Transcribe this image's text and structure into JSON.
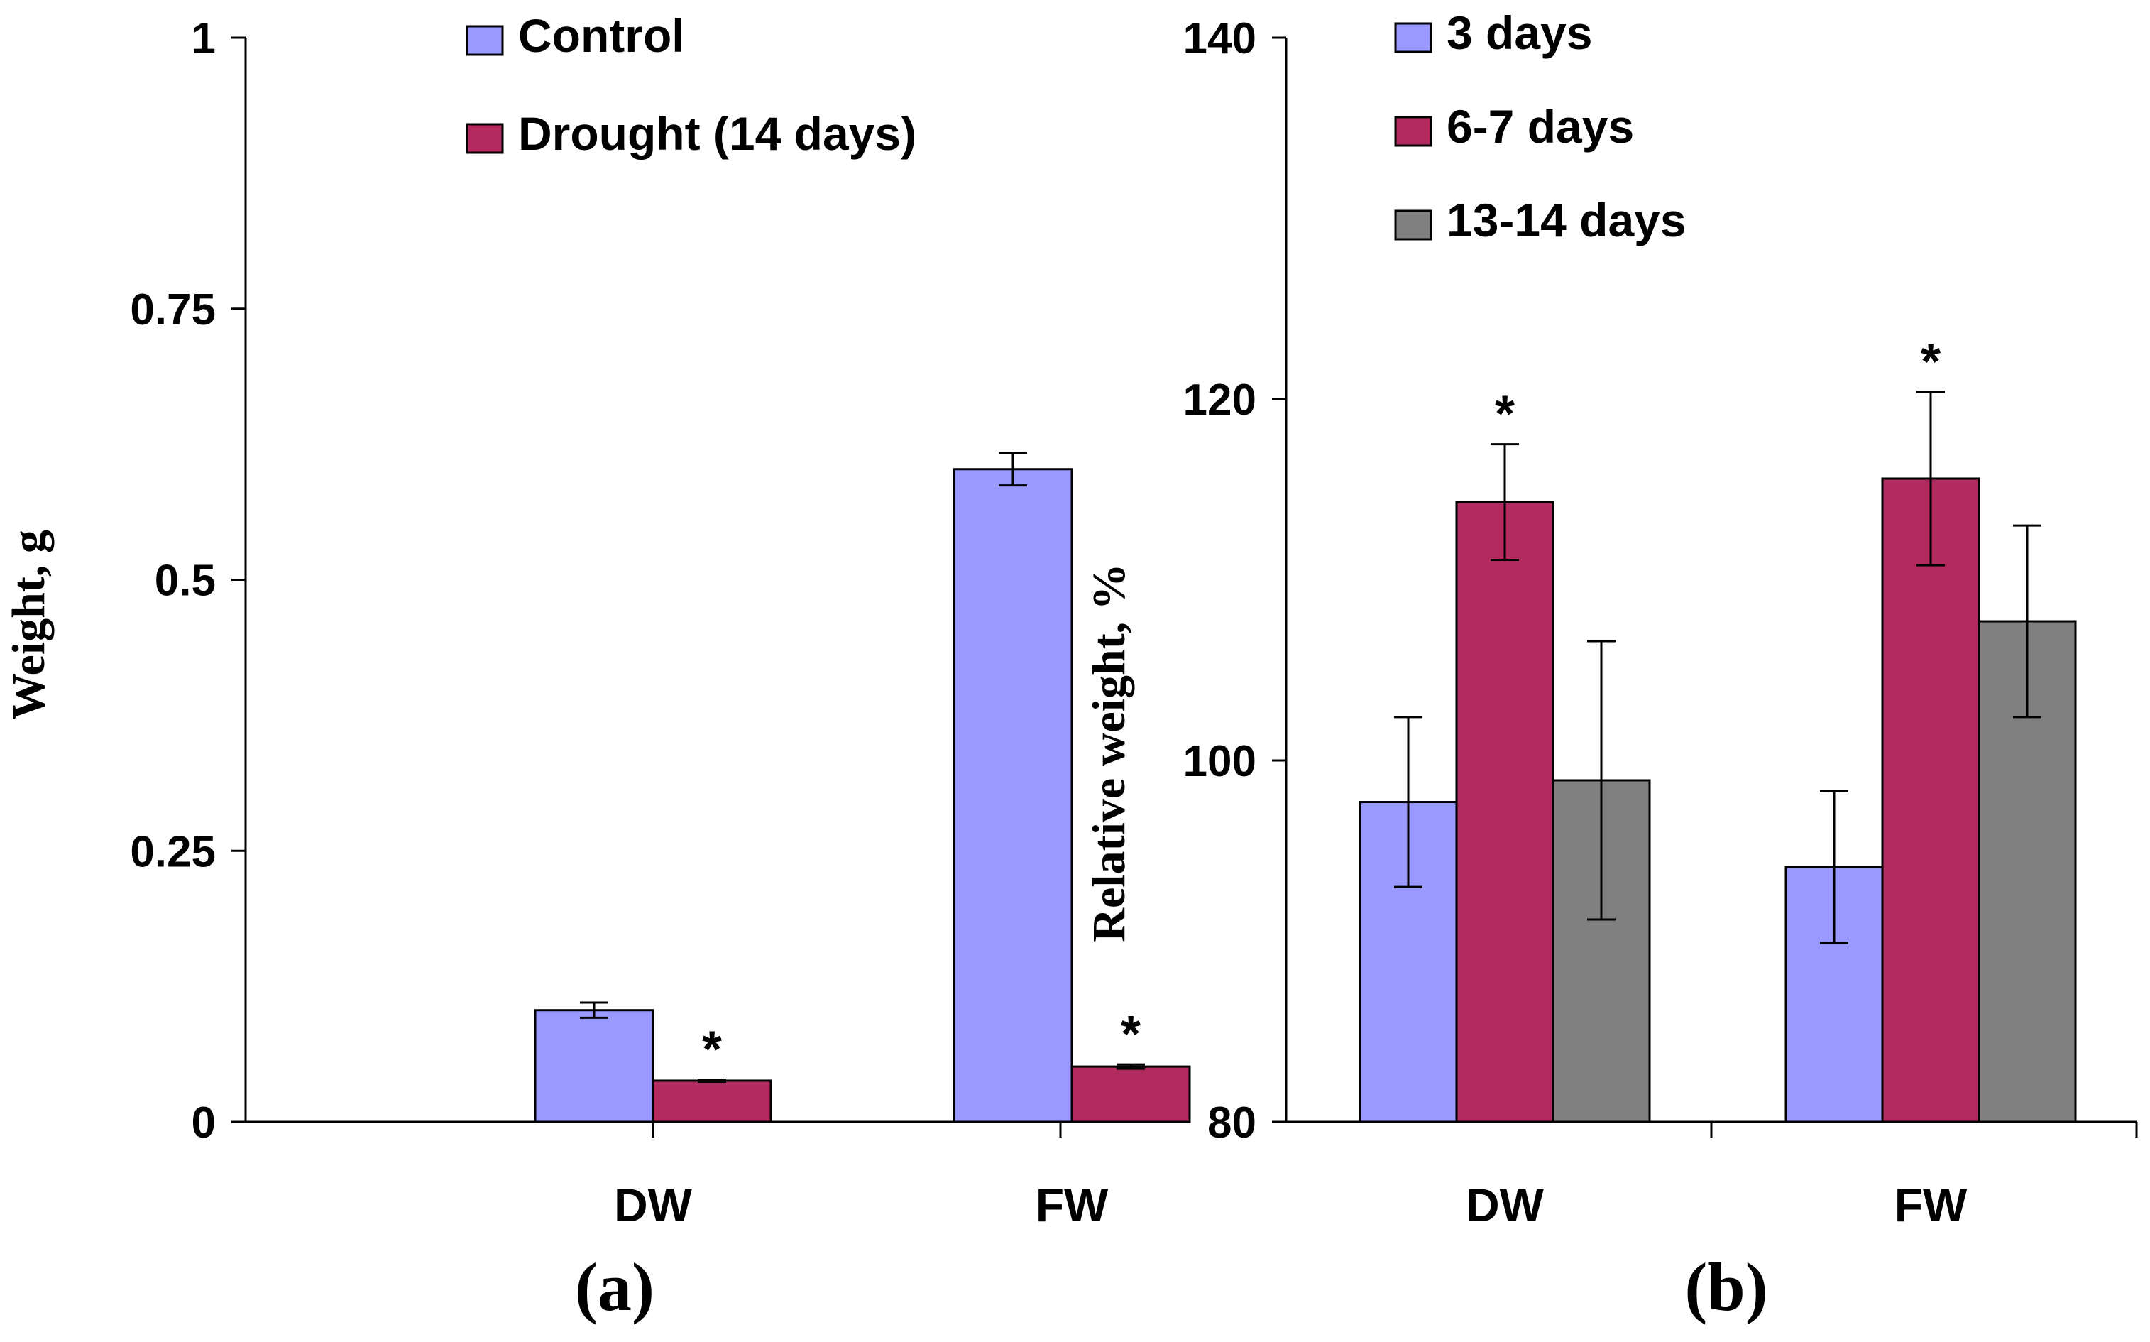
{
  "chart_data": [
    {
      "type": "bar",
      "panel_label": "(a)",
      "title": "",
      "xlabel": "",
      "ylabel": "Weight, g",
      "ylim": [
        0,
        1
      ],
      "yticks": [
        0,
        0.25,
        0.5,
        0.75,
        1
      ],
      "ytick_labels": [
        "0",
        "0.25",
        "0.5",
        "0.75",
        "1"
      ],
      "grid": false,
      "legend_position": "top-right",
      "categories": [
        "DW",
        "FW"
      ],
      "series": [
        {
          "name": "Control",
          "color": "#9999ff",
          "values": [
            0.103,
            0.602
          ],
          "errors": [
            0.007,
            0.015
          ],
          "markers": [
            "",
            ""
          ]
        },
        {
          "name": "Drought (14 days)",
          "color": "#b22b5f",
          "values": [
            0.038,
            0.051
          ],
          "errors": [
            0.001,
            0.002
          ],
          "markers": [
            "*",
            "*"
          ]
        }
      ]
    },
    {
      "type": "bar",
      "panel_label": "(b)",
      "title": "",
      "xlabel": "",
      "ylabel": "Relative weight, %",
      "ylim": [
        80,
        140
      ],
      "yticks": [
        80,
        100,
        120,
        140
      ],
      "ytick_labels": [
        "80",
        "100",
        "120",
        "140"
      ],
      "grid": false,
      "legend_position": "top-right",
      "categories": [
        "DW",
        "FW"
      ],
      "series": [
        {
          "name": "3 days",
          "color": "#9999ff",
          "values": [
            97.7,
            94.1
          ],
          "errors": [
            4.7,
            4.2
          ],
          "markers": [
            "",
            ""
          ]
        },
        {
          "name": "6-7 days",
          "color": "#b22b5f",
          "values": [
            114.3,
            115.6
          ],
          "errors": [
            3.2,
            4.8
          ],
          "markers": [
            "*",
            "*"
          ]
        },
        {
          "name": "13-14 days",
          "color": "#808080",
          "values": [
            98.9,
            107.7
          ],
          "errors": [
            7.7,
            5.3
          ],
          "markers": [
            "",
            ""
          ]
        }
      ]
    }
  ]
}
